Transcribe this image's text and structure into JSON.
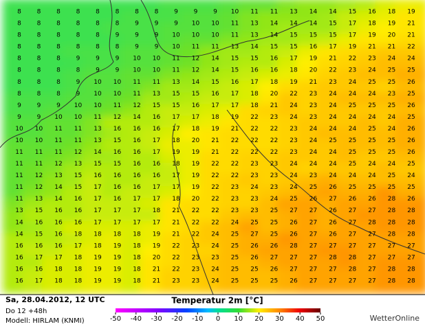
{
  "map": {
    "title": "Temperatur 2m [°C]",
    "date": "Sa, 28.04.2012, 12 UTC",
    "run": "Do 12 +48h",
    "model": "Modell: HIRLAM (KNMI)",
    "brand": "WetterOnline",
    "scale_ticks": [
      -50,
      -40,
      -30,
      -20,
      -10,
      0,
      10,
      20,
      30,
      40,
      50
    ],
    "grid": [
      [
        8,
        8,
        8,
        8,
        8,
        8,
        8,
        8,
        9,
        9,
        9,
        10,
        11,
        11,
        13,
        14,
        14,
        15,
        16,
        18,
        19
      ],
      [
        8,
        8,
        8,
        8,
        8,
        8,
        9,
        9,
        9,
        10,
        10,
        11,
        13,
        14,
        14,
        14,
        15,
        17,
        18,
        19,
        21
      ],
      [
        8,
        8,
        8,
        8,
        8,
        9,
        9,
        9,
        10,
        10,
        10,
        11,
        13,
        14,
        15,
        15,
        15,
        17,
        19,
        20,
        21
      ],
      [
        8,
        8,
        8,
        8,
        8,
        8,
        9,
        9,
        10,
        11,
        11,
        13,
        14,
        15,
        15,
        16,
        17,
        19,
        21,
        21,
        22
      ],
      [
        8,
        8,
        8,
        9,
        9,
        9,
        10,
        10,
        11,
        12,
        14,
        15,
        15,
        16,
        17,
        19,
        21,
        22,
        23,
        24,
        24
      ],
      [
        8,
        8,
        8,
        8,
        9,
        9,
        10,
        10,
        11,
        12,
        14,
        15,
        16,
        16,
        18,
        20,
        22,
        23,
        24,
        25,
        25
      ],
      [
        8,
        8,
        8,
        9,
        10,
        10,
        11,
        11,
        13,
        14,
        15,
        16,
        17,
        18,
        19,
        21,
        23,
        24,
        25,
        25,
        26
      ],
      [
        8,
        8,
        8,
        9,
        10,
        10,
        11,
        13,
        15,
        15,
        16,
        17,
        18,
        20,
        22,
        23,
        24,
        24,
        24,
        23,
        25
      ],
      [
        9,
        9,
        9,
        10,
        10,
        11,
        12,
        15,
        15,
        16,
        17,
        17,
        18,
        21,
        24,
        23,
        24,
        25,
        25,
        25,
        26
      ],
      [
        9,
        9,
        10,
        10,
        11,
        12,
        14,
        16,
        17,
        17,
        18,
        19,
        22,
        23,
        24,
        23,
        24,
        24,
        24,
        24,
        25
      ],
      [
        10,
        10,
        11,
        11,
        13,
        16,
        16,
        16,
        17,
        18,
        19,
        21,
        22,
        22,
        23,
        24,
        24,
        24,
        25,
        24,
        26
      ],
      [
        10,
        10,
        11,
        11,
        13,
        15,
        16,
        17,
        18,
        20,
        21,
        22,
        22,
        22,
        23,
        24,
        25,
        25,
        25,
        25,
        26
      ],
      [
        11,
        11,
        11,
        12,
        14,
        16,
        16,
        17,
        19,
        19,
        21,
        22,
        22,
        22,
        23,
        24,
        24,
        25,
        25,
        25,
        26
      ],
      [
        11,
        11,
        12,
        13,
        15,
        15,
        16,
        16,
        18,
        19,
        22,
        22,
        23,
        23,
        24,
        24,
        24,
        25,
        24,
        24,
        25
      ],
      [
        11,
        12,
        13,
        15,
        16,
        16,
        16,
        16,
        17,
        19,
        22,
        22,
        23,
        23,
        24,
        23,
        24,
        24,
        24,
        25,
        24
      ],
      [
        11,
        12,
        14,
        15,
        17,
        16,
        16,
        17,
        17,
        19,
        22,
        23,
        24,
        23,
        24,
        25,
        26,
        25,
        25,
        25,
        25
      ],
      [
        11,
        13,
        14,
        16,
        17,
        16,
        17,
        17,
        18,
        20,
        22,
        23,
        23,
        24,
        25,
        26,
        27,
        26,
        26,
        28,
        26
      ],
      [
        13,
        15,
        16,
        16,
        17,
        17,
        17,
        18,
        21,
        22,
        22,
        23,
        23,
        25,
        27,
        27,
        26,
        27,
        27,
        28,
        28
      ],
      [
        14,
        16,
        16,
        16,
        17,
        17,
        17,
        17,
        21,
        22,
        22,
        24,
        25,
        25,
        26,
        27,
        26,
        27,
        28,
        28,
        28
      ],
      [
        14,
        15,
        16,
        18,
        18,
        18,
        18,
        19,
        21,
        22,
        24,
        25,
        27,
        25,
        26,
        27,
        26,
        27,
        27,
        28,
        28
      ],
      [
        16,
        16,
        16,
        17,
        18,
        19,
        18,
        19,
        22,
        23,
        24,
        25,
        26,
        26,
        28,
        27,
        27,
        27,
        27,
        27,
        27
      ],
      [
        16,
        17,
        17,
        18,
        19,
        19,
        18,
        20,
        22,
        23,
        23,
        25,
        26,
        27,
        27,
        27,
        28,
        28,
        27,
        27,
        27
      ],
      [
        16,
        16,
        18,
        18,
        19,
        19,
        18,
        21,
        22,
        23,
        24,
        25,
        25,
        26,
        27,
        27,
        27,
        28,
        27,
        28,
        28
      ],
      [
        16,
        17,
        18,
        18,
        19,
        19,
        18,
        21,
        23,
        23,
        24,
        25,
        25,
        25,
        26,
        27,
        27,
        27,
        27,
        28,
        28
      ]
    ]
  }
}
